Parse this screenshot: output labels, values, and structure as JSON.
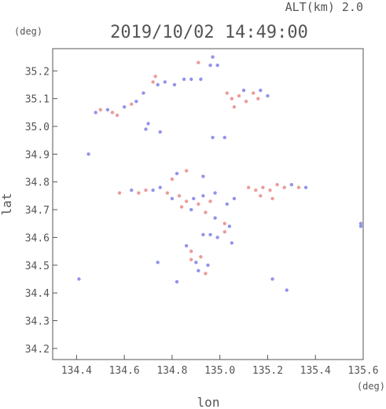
{
  "header": {
    "altitude": "ALT(km)  2.0",
    "timestamp": "2019/10/02 14:49:00",
    "y_unit": "(deg)",
    "x_unit": "(deg)"
  },
  "chart_data": {
    "type": "scatter",
    "title": "2019/10/02 14:49:00",
    "subtitle": "ALT(km)  2.0",
    "xlabel": "lon",
    "ylabel": "lat",
    "xlim": [
      134.3,
      135.6
    ],
    "ylim": [
      34.16,
      35.28
    ],
    "x_ticks": [
      "134.4",
      "134.6",
      "134.8",
      "135.0",
      "135.2",
      "135.4",
      "135.6"
    ],
    "y_ticks": [
      "35.2",
      "35.1",
      "35.0",
      "34.9",
      "34.8",
      "34.7",
      "34.6",
      "34.5",
      "34.4",
      "34.3",
      "34.2"
    ],
    "grid": false,
    "colors": {
      "positive": "#e88a8a",
      "negative": "#8080e8",
      "frame": "#555555"
    },
    "series": [
      {
        "name": "",
        "points": [
          {
            "x": 134.91,
            "y": 35.23,
            "v": 1
          },
          {
            "x": 134.97,
            "y": 35.25,
            "v": -1
          },
          {
            "x": 134.96,
            "y": 35.22,
            "v": -1
          },
          {
            "x": 134.99,
            "y": 35.22,
            "v": -1
          },
          {
            "x": 134.73,
            "y": 35.18,
            "v": 1
          },
          {
            "x": 134.72,
            "y": 35.16,
            "v": 1
          },
          {
            "x": 134.74,
            "y": 35.15,
            "v": -1
          },
          {
            "x": 134.77,
            "y": 35.16,
            "v": -1
          },
          {
            "x": 134.81,
            "y": 35.15,
            "v": -1
          },
          {
            "x": 134.85,
            "y": 35.17,
            "v": -1
          },
          {
            "x": 134.88,
            "y": 35.17,
            "v": -1
          },
          {
            "x": 134.92,
            "y": 35.17,
            "v": -1
          },
          {
            "x": 134.68,
            "y": 35.12,
            "v": -1
          },
          {
            "x": 134.65,
            "y": 35.09,
            "v": -1
          },
          {
            "x": 134.63,
            "y": 35.08,
            "v": 1
          },
          {
            "x": 134.5,
            "y": 35.06,
            "v": 1
          },
          {
            "x": 134.53,
            "y": 35.06,
            "v": -1
          },
          {
            "x": 134.55,
            "y": 35.05,
            "v": 1
          },
          {
            "x": 134.57,
            "y": 35.04,
            "v": 1
          },
          {
            "x": 134.48,
            "y": 35.05,
            "v": -1
          },
          {
            "x": 134.6,
            "y": 35.07,
            "v": -1
          },
          {
            "x": 134.7,
            "y": 35.01,
            "v": -1
          },
          {
            "x": 134.69,
            "y": 34.99,
            "v": -1
          },
          {
            "x": 134.75,
            "y": 34.98,
            "v": -1
          },
          {
            "x": 135.03,
            "y": 35.12,
            "v": 1
          },
          {
            "x": 135.05,
            "y": 35.1,
            "v": 1
          },
          {
            "x": 135.08,
            "y": 35.11,
            "v": 1
          },
          {
            "x": 135.11,
            "y": 35.09,
            "v": 1
          },
          {
            "x": 135.14,
            "y": 35.12,
            "v": 1
          },
          {
            "x": 135.1,
            "y": 35.13,
            "v": -1
          },
          {
            "x": 135.16,
            "y": 35.1,
            "v": 1
          },
          {
            "x": 135.06,
            "y": 35.07,
            "v": 1
          },
          {
            "x": 135.2,
            "y": 35.11,
            "v": -1
          },
          {
            "x": 135.17,
            "y": 35.13,
            "v": -1
          },
          {
            "x": 135.02,
            "y": 34.96,
            "v": -1
          },
          {
            "x": 134.97,
            "y": 34.96,
            "v": -1
          },
          {
            "x": 134.45,
            "y": 34.9,
            "v": -1
          },
          {
            "x": 134.82,
            "y": 34.83,
            "v": -1
          },
          {
            "x": 134.8,
            "y": 34.81,
            "v": 1
          },
          {
            "x": 134.86,
            "y": 34.84,
            "v": 1
          },
          {
            "x": 134.93,
            "y": 34.82,
            "v": -1
          },
          {
            "x": 134.69,
            "y": 34.77,
            "v": 1
          },
          {
            "x": 134.72,
            "y": 34.77,
            "v": -1
          },
          {
            "x": 134.66,
            "y": 34.76,
            "v": 1
          },
          {
            "x": 134.63,
            "y": 34.77,
            "v": -1
          },
          {
            "x": 134.58,
            "y": 34.76,
            "v": 1
          },
          {
            "x": 134.75,
            "y": 34.78,
            "v": -1
          },
          {
            "x": 134.78,
            "y": 34.76,
            "v": 1
          },
          {
            "x": 134.8,
            "y": 34.74,
            "v": -1
          },
          {
            "x": 134.83,
            "y": 34.75,
            "v": 1
          },
          {
            "x": 134.86,
            "y": 34.73,
            "v": 1
          },
          {
            "x": 134.89,
            "y": 34.74,
            "v": -1
          },
          {
            "x": 134.91,
            "y": 34.72,
            "v": 1
          },
          {
            "x": 134.93,
            "y": 34.75,
            "v": -1
          },
          {
            "x": 134.96,
            "y": 34.73,
            "v": 1
          },
          {
            "x": 134.98,
            "y": 34.76,
            "v": -1
          },
          {
            "x": 134.84,
            "y": 34.71,
            "v": 1
          },
          {
            "x": 134.88,
            "y": 34.7,
            "v": -1
          },
          {
            "x": 134.94,
            "y": 34.69,
            "v": 1
          },
          {
            "x": 135.03,
            "y": 34.72,
            "v": -1
          },
          {
            "x": 135.06,
            "y": 34.74,
            "v": -1
          },
          {
            "x": 135.12,
            "y": 34.78,
            "v": 1
          },
          {
            "x": 135.15,
            "y": 34.77,
            "v": 1
          },
          {
            "x": 135.18,
            "y": 34.78,
            "v": 1
          },
          {
            "x": 135.21,
            "y": 34.77,
            "v": 1
          },
          {
            "x": 135.24,
            "y": 34.79,
            "v": 1
          },
          {
            "x": 135.27,
            "y": 34.78,
            "v": 1
          },
          {
            "x": 135.17,
            "y": 34.75,
            "v": 1
          },
          {
            "x": 135.22,
            "y": 34.74,
            "v": 1
          },
          {
            "x": 135.3,
            "y": 34.79,
            "v": -1
          },
          {
            "x": 135.33,
            "y": 34.78,
            "v": 1
          },
          {
            "x": 135.36,
            "y": 34.78,
            "v": -1
          },
          {
            "x": 134.98,
            "y": 34.67,
            "v": -1
          },
          {
            "x": 135.02,
            "y": 34.65,
            "v": 1
          },
          {
            "x": 135.04,
            "y": 34.64,
            "v": -1
          },
          {
            "x": 135.02,
            "y": 34.62,
            "v": 1
          },
          {
            "x": 134.99,
            "y": 34.6,
            "v": -1
          },
          {
            "x": 134.96,
            "y": 34.61,
            "v": -1
          },
          {
            "x": 134.93,
            "y": 34.61,
            "v": -1
          },
          {
            "x": 135.05,
            "y": 34.58,
            "v": -1
          },
          {
            "x": 135.59,
            "y": 34.65,
            "v": -1
          },
          {
            "x": 135.59,
            "y": 34.64,
            "v": -1
          },
          {
            "x": 134.88,
            "y": 34.52,
            "v": 1
          },
          {
            "x": 134.9,
            "y": 34.51,
            "v": -1
          },
          {
            "x": 134.92,
            "y": 34.53,
            "v": 1
          },
          {
            "x": 134.95,
            "y": 34.5,
            "v": -1
          },
          {
            "x": 134.91,
            "y": 34.48,
            "v": -1
          },
          {
            "x": 134.94,
            "y": 34.47,
            "v": 1
          },
          {
            "x": 134.88,
            "y": 34.55,
            "v": 1
          },
          {
            "x": 134.86,
            "y": 34.57,
            "v": -1
          },
          {
            "x": 134.74,
            "y": 34.51,
            "v": -1
          },
          {
            "x": 134.41,
            "y": 34.45,
            "v": -1
          },
          {
            "x": 134.82,
            "y": 34.44,
            "v": -1
          },
          {
            "x": 135.22,
            "y": 34.45,
            "v": -1
          },
          {
            "x": 135.28,
            "y": 34.41,
            "v": -1
          }
        ]
      }
    ]
  }
}
